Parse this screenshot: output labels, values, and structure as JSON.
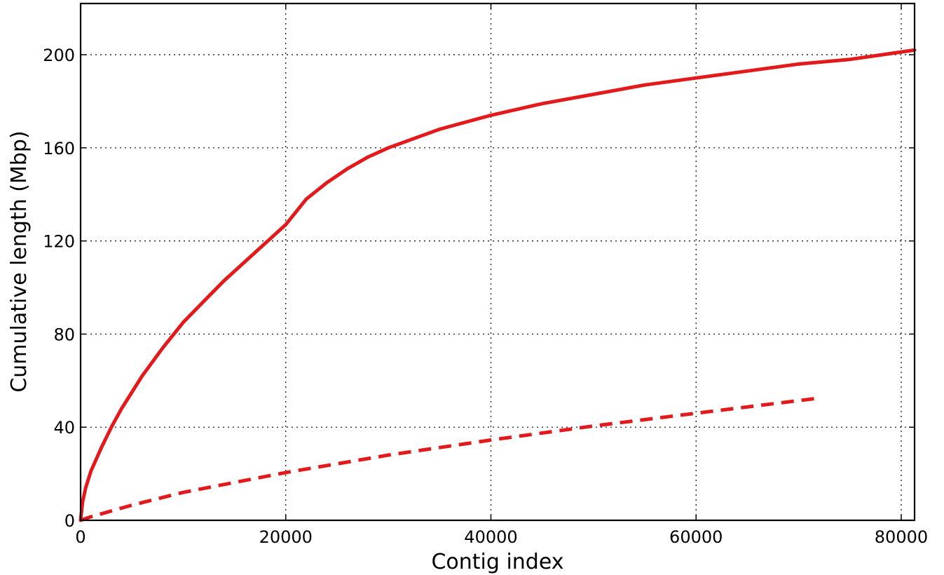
{
  "chart_data": {
    "type": "line",
    "title": "",
    "xlabel": "Contig index",
    "ylabel": "Cumulative length (Mbp)",
    "xlim": [
      0,
      81300
    ],
    "ylim": [
      0,
      222
    ],
    "xticks": [
      0,
      20000,
      40000,
      60000,
      80000
    ],
    "xtick_labels": [
      "0",
      "20000",
      "40000",
      "60000",
      "80000"
    ],
    "yticks": [
      0,
      40,
      80,
      120,
      160,
      200
    ],
    "ytick_labels": [
      "0",
      "40",
      "80",
      "120",
      "160",
      "200"
    ],
    "grid": true,
    "series": [
      {
        "style": "solid",
        "color": "#e31a1c",
        "x": [
          0,
          200,
          500,
          1000,
          2000,
          3000,
          4000,
          5000,
          6000,
          8000,
          10000,
          12000,
          14000,
          16000,
          18000,
          20000,
          22000,
          24000,
          26000,
          28000,
          30000,
          35000,
          40000,
          45000,
          50000,
          55000,
          60000,
          65000,
          70000,
          75000,
          81300
        ],
        "y": [
          0,
          8,
          14,
          21,
          31,
          40,
          48,
          55,
          62,
          74,
          85,
          94,
          103,
          111,
          119,
          127,
          138,
          145,
          151,
          156,
          160,
          168,
          174,
          179,
          183,
          187,
          190,
          193,
          196,
          198,
          202
        ]
      },
      {
        "style": "dashed",
        "color": "#e31a1c",
        "x": [
          0,
          1000,
          5000,
          10000,
          20000,
          30000,
          40000,
          50000,
          60000,
          72000
        ],
        "y": [
          0,
          1.5,
          6.5,
          12,
          20.5,
          28,
          34.5,
          40.5,
          46,
          52.5
        ]
      }
    ]
  }
}
